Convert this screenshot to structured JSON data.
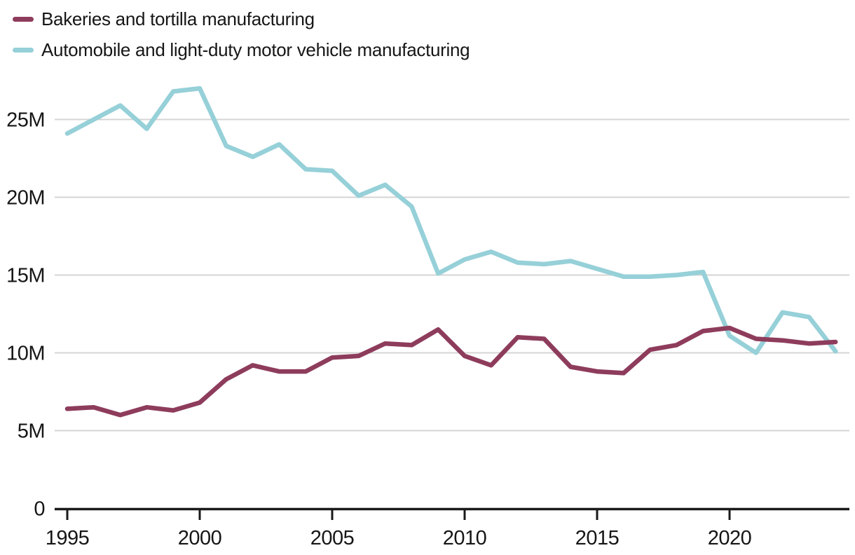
{
  "legend": {
    "series": [
      {
        "label": "Bakeries and tortilla manufacturing",
        "color": "#8e3c5c"
      },
      {
        "label": "Automobile and light-duty motor vehicle manufacturing",
        "color": "#96d0d8"
      }
    ]
  },
  "colors": {
    "bakeries_line": "#8e3c5c",
    "automobile_line": "#96d0d8",
    "gridline": "#d4d4d4",
    "axis": "#1a1a1a",
    "text": "#161616",
    "background": "#ffffff"
  },
  "chart_data": {
    "type": "line",
    "title": "",
    "xlabel": "",
    "ylabel": "",
    "units": "millions (M)",
    "grid": "horizontal",
    "legend_position": "top-left",
    "xlim": [
      1995,
      2024
    ],
    "ylim": [
      0,
      27.5
    ],
    "x": [
      1995,
      1996,
      1997,
      1998,
      1999,
      2000,
      2001,
      2002,
      2003,
      2004,
      2005,
      2006,
      2007,
      2008,
      2009,
      2010,
      2011,
      2012,
      2013,
      2014,
      2015,
      2016,
      2017,
      2018,
      2019,
      2020,
      2021,
      2022,
      2023,
      2024
    ],
    "series": [
      {
        "name": "Bakeries and tortilla manufacturing",
        "color": "#8e3c5c",
        "values": [
          6.4,
          6.5,
          6.0,
          6.5,
          6.3,
          6.8,
          8.3,
          9.2,
          8.8,
          8.8,
          9.7,
          9.8,
          10.6,
          10.5,
          11.5,
          9.8,
          9.2,
          11.0,
          10.9,
          9.1,
          8.8,
          8.7,
          10.2,
          10.5,
          11.4,
          11.6,
          10.9,
          10.8,
          10.6,
          10.7
        ]
      },
      {
        "name": "Automobile and light-duty motor vehicle manufacturing",
        "color": "#96d0d8",
        "values": [
          24.1,
          25.0,
          25.9,
          24.4,
          26.8,
          27.0,
          23.3,
          22.6,
          23.4,
          21.8,
          21.7,
          20.1,
          20.8,
          19.4,
          15.1,
          16.0,
          16.5,
          15.8,
          15.7,
          15.9,
          15.4,
          14.9,
          14.9,
          15.0,
          15.2,
          11.1,
          10.0,
          12.6,
          12.3,
          10.1
        ]
      }
    ],
    "ytick_values": [
      0,
      5,
      10,
      15,
      20,
      25
    ],
    "ytick_labels": [
      "0",
      "5M",
      "10M",
      "15M",
      "20M",
      "25M"
    ],
    "xtick_values": [
      1995,
      2000,
      2005,
      2010,
      2015,
      2020
    ],
    "xtick_labels": [
      "1995",
      "2000",
      "2005",
      "2010",
      "2015",
      "2020"
    ]
  }
}
